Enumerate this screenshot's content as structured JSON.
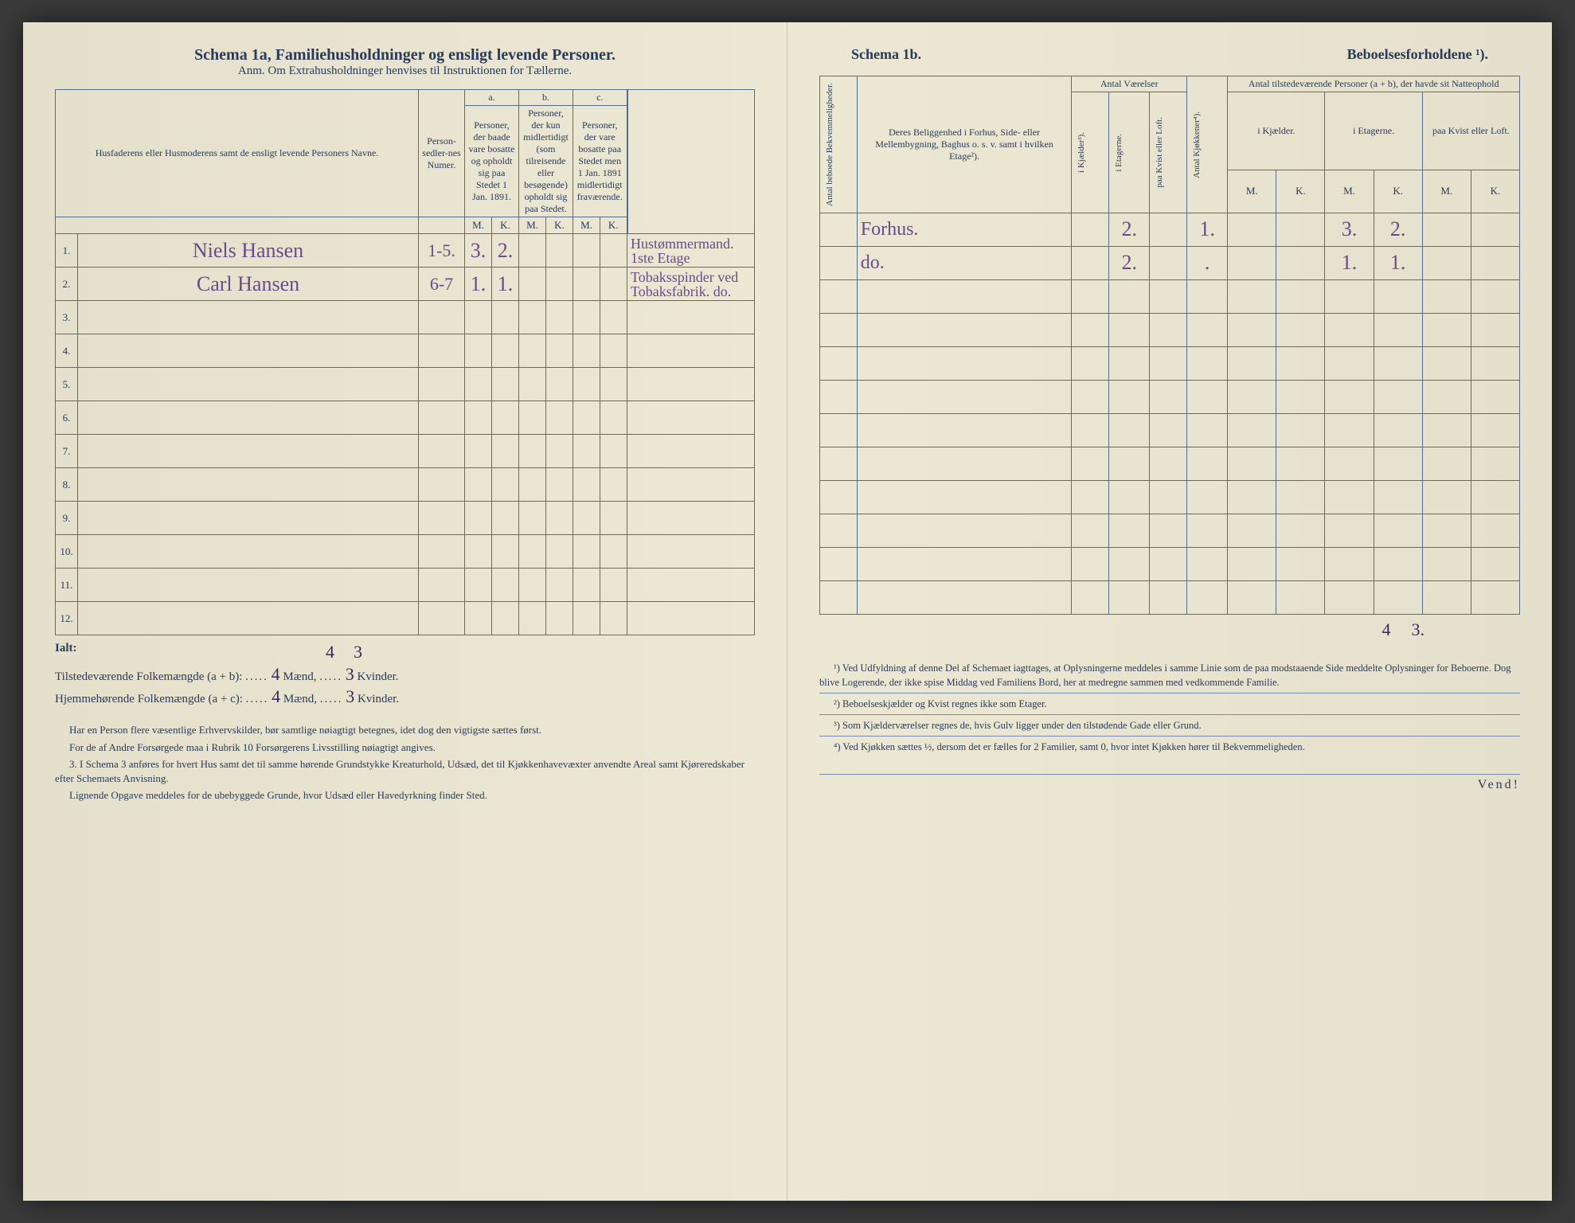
{
  "left": {
    "title": "Schema 1a,  Familiehusholdninger og ensligt levende Personer.",
    "subtitle": "Anm. Om Extrahusholdninger henvises til Instruktionen for Tællerne.",
    "headers": {
      "name": "Husfaderens eller Husmoderens samt de ensligt levende Personers Navne.",
      "personnum": "Person-sedler-nes Numer.",
      "a_label": "a.",
      "a": "Personer, der baade vare bosatte og opholdt sig paa Stedet 1 Jan. 1891.",
      "b_label": "b.",
      "b": "Personer, der kun midlertidigt (som tilreisende eller besøgende) opholdt sig paa Stedet.",
      "c_label": "c.",
      "c": "Personer, der vare bosatte paa Stedet men 1 Jan. 1891 midlertidigt fraværende.",
      "M": "M.",
      "K": "K."
    },
    "rows": [
      {
        "n": "1.",
        "name": "Niels Hansen",
        "pn": "1-5.",
        "aM": "3.",
        "aK": "2.",
        "bM": "",
        "bK": "",
        "cM": "",
        "cK": "",
        "occ": "Hustømmermand. 1ste Etage"
      },
      {
        "n": "2.",
        "name": "Carl Hansen",
        "pn": "6-7",
        "aM": "1.",
        "aK": "1.",
        "bM": "",
        "bK": "",
        "cM": "",
        "cK": "",
        "occ": "Tobaksspinder ved Tobaksfabrik.   do."
      },
      {
        "n": "3.",
        "name": "",
        "pn": "",
        "aM": "",
        "aK": "",
        "bM": "",
        "bK": "",
        "cM": "",
        "cK": "",
        "occ": ""
      },
      {
        "n": "4.",
        "name": "",
        "pn": "",
        "aM": "",
        "aK": "",
        "bM": "",
        "bK": "",
        "cM": "",
        "cK": "",
        "occ": ""
      },
      {
        "n": "5.",
        "name": "",
        "pn": "",
        "aM": "",
        "aK": "",
        "bM": "",
        "bK": "",
        "cM": "",
        "cK": "",
        "occ": ""
      },
      {
        "n": "6.",
        "name": "",
        "pn": "",
        "aM": "",
        "aK": "",
        "bM": "",
        "bK": "",
        "cM": "",
        "cK": "",
        "occ": ""
      },
      {
        "n": "7.",
        "name": "",
        "pn": "",
        "aM": "",
        "aK": "",
        "bM": "",
        "bK": "",
        "cM": "",
        "cK": "",
        "occ": ""
      },
      {
        "n": "8.",
        "name": "",
        "pn": "",
        "aM": "",
        "aK": "",
        "bM": "",
        "bK": "",
        "cM": "",
        "cK": "",
        "occ": ""
      },
      {
        "n": "9.",
        "name": "",
        "pn": "",
        "aM": "",
        "aK": "",
        "bM": "",
        "bK": "",
        "cM": "",
        "cK": "",
        "occ": ""
      },
      {
        "n": "10.",
        "name": "",
        "pn": "",
        "aM": "",
        "aK": "",
        "bM": "",
        "bK": "",
        "cM": "",
        "cK": "",
        "occ": ""
      },
      {
        "n": "11.",
        "name": "",
        "pn": "",
        "aM": "",
        "aK": "",
        "bM": "",
        "bK": "",
        "cM": "",
        "cK": "",
        "occ": ""
      },
      {
        "n": "12.",
        "name": "",
        "pn": "",
        "aM": "",
        "aK": "",
        "bM": "",
        "bK": "",
        "cM": "",
        "cK": "",
        "occ": ""
      }
    ],
    "totals": {
      "ialt_label": "Ialt:",
      "ialt_aM": "4",
      "ialt_aK": "3",
      "line1_label": "Tilstedeværende Folkemængde (a + b):",
      "line1_M": "4",
      "line1_M_unit": "Mænd,",
      "line1_K": "3",
      "line1_K_unit": "Kvinder.",
      "line2_label": "Hjemmehørende Folkemængde (a + c):",
      "line2_M": "4",
      "line2_M_unit": "Mænd,",
      "line2_K": "3",
      "line2_K_unit": "Kvinder."
    },
    "notes": [
      "Har en Person flere væsentlige Erhvervskilder, bør samtlige nøiagtigt betegnes, idet dog den vigtigste sættes først.",
      "For de af Andre Forsørgede maa i Rubrik 10 Forsørgerens Livsstilling nøiagtigt angives.",
      "3. I Schema 3 anføres for hvert Hus samt det til samme hørende Grundstykke Kreaturhold, Udsæd, det til Kjøkkenhavevæxter anvendte Areal samt Kjøreredskaber efter Schemaets Anvisning.",
      "Lignende Opgave meddeles for de ubebyggede Grunde, hvor Udsæd eller Havedyrkning finder Sted."
    ]
  },
  "right": {
    "title_left": "Schema 1b.",
    "title_right": "Beboelsesforholdene ¹).",
    "headers": {
      "bekv": "Antal beboede Bekvemmeligheder.",
      "belig": "Deres Beliggenhed i Forhus, Side- eller Mellembygning, Baghus o. s. v. samt i hvilken Etage²).",
      "vaer": "Antal Værelser",
      "kjaelder": "i Kjælder³).",
      "etagerne": "i Etagerne.",
      "kvist": "paa Kvist eller Loft.",
      "kjokken": "Antal Kjøkkener⁴).",
      "natt": "Antal tilstedeværende Personer (a + b), der havde sit Natteophold",
      "natt_kj": "i Kjælder.",
      "natt_et": "i Etagerne.",
      "natt_kv": "paa Kvist eller Loft.",
      "M": "M.",
      "K": "K."
    },
    "rows": [
      {
        "bekv": "",
        "belig": "Forhus.",
        "kj": "",
        "et": "2.",
        "kv": "",
        "kjok": "1.",
        "nkjM": "",
        "nkjK": "",
        "netM": "3.",
        "netK": "2.",
        "nkvM": "",
        "nkvK": ""
      },
      {
        "bekv": "",
        "belig": "do.",
        "kj": "",
        "et": "2.",
        "kv": "",
        "kjok": ".",
        "nkjM": "",
        "nkjK": "",
        "netM": "1.",
        "netK": "1.",
        "nkvM": "",
        "nkvK": ""
      },
      {
        "bekv": "",
        "belig": "",
        "kj": "",
        "et": "",
        "kv": "",
        "kjok": "",
        "nkjM": "",
        "nkjK": "",
        "netM": "",
        "netK": "",
        "nkvM": "",
        "nkvK": ""
      },
      {
        "bekv": "",
        "belig": "",
        "kj": "",
        "et": "",
        "kv": "",
        "kjok": "",
        "nkjM": "",
        "nkjK": "",
        "netM": "",
        "netK": "",
        "nkvM": "",
        "nkvK": ""
      },
      {
        "bekv": "",
        "belig": "",
        "kj": "",
        "et": "",
        "kv": "",
        "kjok": "",
        "nkjM": "",
        "nkjK": "",
        "netM": "",
        "netK": "",
        "nkvM": "",
        "nkvK": ""
      },
      {
        "bekv": "",
        "belig": "",
        "kj": "",
        "et": "",
        "kv": "",
        "kjok": "",
        "nkjM": "",
        "nkjK": "",
        "netM": "",
        "netK": "",
        "nkvM": "",
        "nkvK": ""
      },
      {
        "bekv": "",
        "belig": "",
        "kj": "",
        "et": "",
        "kv": "",
        "kjok": "",
        "nkjM": "",
        "nkjK": "",
        "netM": "",
        "netK": "",
        "nkvM": "",
        "nkvK": ""
      },
      {
        "bekv": "",
        "belig": "",
        "kj": "",
        "et": "",
        "kv": "",
        "kjok": "",
        "nkjM": "",
        "nkjK": "",
        "netM": "",
        "netK": "",
        "nkvM": "",
        "nkvK": ""
      },
      {
        "bekv": "",
        "belig": "",
        "kj": "",
        "et": "",
        "kv": "",
        "kjok": "",
        "nkjM": "",
        "nkjK": "",
        "netM": "",
        "netK": "",
        "nkvM": "",
        "nkvK": ""
      },
      {
        "bekv": "",
        "belig": "",
        "kj": "",
        "et": "",
        "kv": "",
        "kjok": "",
        "nkjM": "",
        "nkjK": "",
        "netM": "",
        "netK": "",
        "nkvM": "",
        "nkvK": ""
      },
      {
        "bekv": "",
        "belig": "",
        "kj": "",
        "et": "",
        "kv": "",
        "kjok": "",
        "nkjM": "",
        "nkjK": "",
        "netM": "",
        "netK": "",
        "nkvM": "",
        "nkvK": ""
      },
      {
        "bekv": "",
        "belig": "",
        "kj": "",
        "et": "",
        "kv": "",
        "kjok": "",
        "nkjM": "",
        "nkjK": "",
        "netM": "",
        "netK": "",
        "nkvM": "",
        "nkvK": ""
      }
    ],
    "totals": {
      "netM": "4",
      "netK": "3."
    },
    "notes": [
      "¹) Ved Udfyldning af denne Del af Schemaet iagttages, at Oplysningerne meddeles i samme Linie som de paa modstaaende Side meddelte Oplysninger for Beboerne. Dog blive Logerende, der ikke spise Middag ved Familiens Bord, her at medregne sammen med vedkommende Familie.",
      "²) Beboelseskjælder og Kvist regnes ikke som Etager.",
      "³) Som Kjælderværelser regnes de, hvis Gulv ligger under den tilstødende Gade eller Grund.",
      "⁴) Ved Kjøkken sættes ½, dersom det er fælles for 2 Familier, samt 0, hvor intet Kjøkken hører til Bekvemmeligheden."
    ],
    "vend": "Vend!"
  },
  "style": {
    "paper_bg": "#e8e4d0",
    "ink": "#2a3a5a",
    "handwriting": "#6a4a8a",
    "border": "#5a6a8a"
  }
}
